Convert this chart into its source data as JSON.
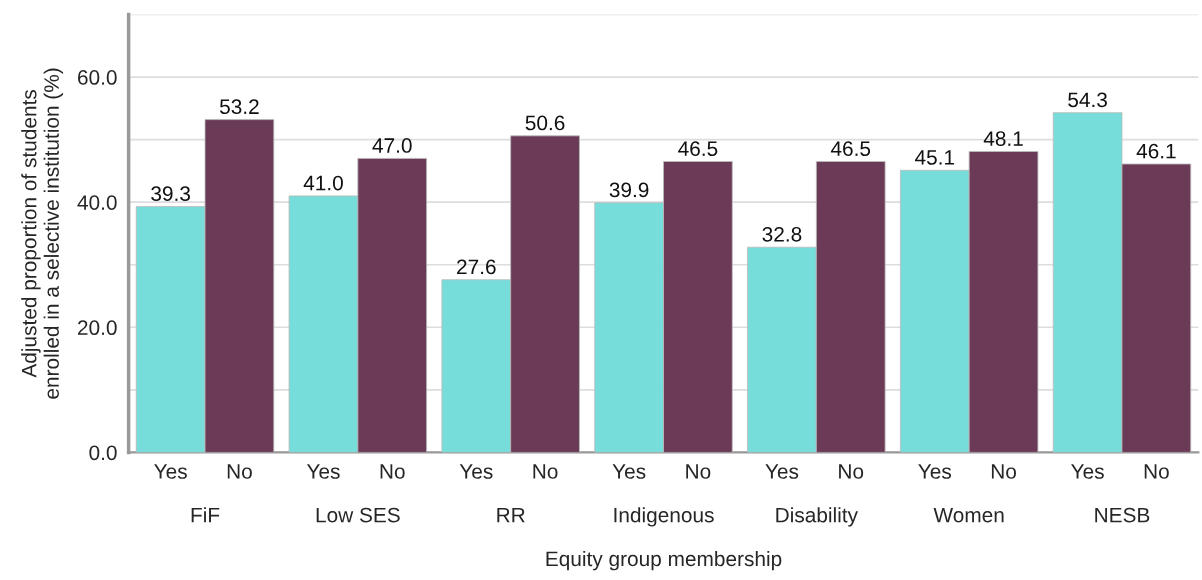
{
  "chart_data": {
    "type": "bar",
    "xlabel": "Equity group membership",
    "ylabel": "Adjusted proportion of students\nenrolled in a selective institution (%)",
    "categories": [
      "FiF",
      "Low SES",
      "RR",
      "Indigenous",
      "Disability",
      "Women",
      "NESB"
    ],
    "series": [
      {
        "name": "Yes",
        "color": "#76ddda",
        "values": [
          39.3,
          41.0,
          27.6,
          39.9,
          32.8,
          45.1,
          54.3
        ],
        "value_labels": [
          "39.3",
          "41.0",
          "27.6",
          "39.9",
          "32.8",
          "45.1",
          "54.3"
        ]
      },
      {
        "name": "No",
        "color": "#6b3a57",
        "values": [
          53.2,
          47.0,
          50.6,
          46.5,
          46.5,
          48.1,
          46.1
        ],
        "value_labels": [
          "53.2",
          "47.0",
          "50.6",
          "46.5",
          "46.5",
          "48.1",
          "46.1"
        ]
      }
    ],
    "ylim": [
      0,
      70
    ],
    "yticks": [
      {
        "value": 0,
        "label": "0.0"
      },
      {
        "value": 10,
        "label": null
      },
      {
        "value": 20,
        "label": "20.0"
      },
      {
        "value": 30,
        "label": null
      },
      {
        "value": 40,
        "label": "40.0"
      },
      {
        "value": 50,
        "label": null
      },
      {
        "value": 60,
        "label": "60.0"
      },
      {
        "value": 70,
        "label": null
      }
    ],
    "grid": "y"
  }
}
